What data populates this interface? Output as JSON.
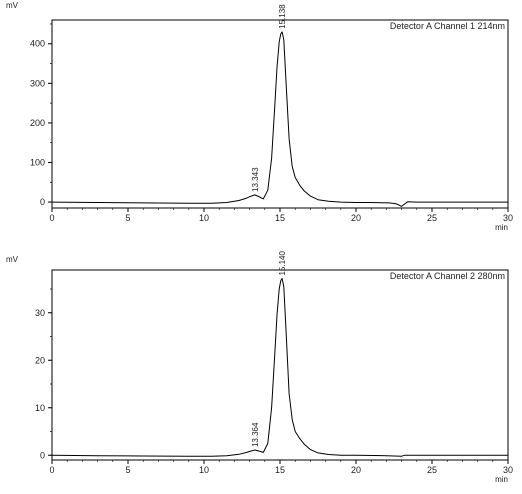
{
  "chart_data": [
    {
      "type": "line",
      "title": "",
      "legend": "Detector A Channel 1 214nm",
      "legend_position": "top-right",
      "ylabel": "mV",
      "xlabel": "min",
      "xlim": [
        0,
        30
      ],
      "ylim": [
        -15,
        460
      ],
      "xticks": [
        0,
        5,
        10,
        15,
        20,
        25,
        30
      ],
      "yticks": [
        0,
        100,
        200,
        300,
        400
      ],
      "grid": false,
      "series": [
        {
          "x": [
            0,
            3,
            6,
            9,
            10.5,
            11.5,
            12.3,
            12.8,
            13.1,
            13.34,
            13.6,
            13.9,
            14.2,
            14.45,
            14.65,
            14.8,
            14.95,
            15.05,
            15.138,
            15.25,
            15.4,
            15.6,
            15.8,
            16.0,
            16.3,
            16.6,
            17.0,
            17.5,
            18.2,
            19.0,
            20,
            21,
            22.2,
            22.6,
            22.8,
            23.0,
            23.2,
            23.4,
            24,
            26,
            28,
            30
          ],
          "y": [
            0,
            -1,
            -2,
            -3,
            -3,
            -1,
            4,
            10,
            15,
            18,
            14,
            8,
            30,
            110,
            240,
            340,
            405,
            425,
            430,
            410,
            300,
            160,
            90,
            62,
            42,
            28,
            15,
            6,
            2,
            0,
            -1,
            -1,
            -2,
            -4,
            -7,
            -11,
            -5,
            1,
            0,
            0,
            0,
            0
          ]
        }
      ],
      "peaks": [
        {
          "label": "13.343",
          "x": 13.343,
          "y": 18
        },
        {
          "label": "15.138",
          "x": 15.138,
          "y": 430
        }
      ]
    },
    {
      "type": "line",
      "title": "",
      "legend": "Detector A Channel 2 280nm",
      "legend_position": "top-right",
      "ylabel": "mV",
      "xlabel": "min",
      "xlim": [
        0,
        30
      ],
      "ylim": [
        -1,
        39
      ],
      "xticks": [
        0,
        5,
        10,
        15,
        20,
        25,
        30
      ],
      "yticks": [
        0,
        10,
        20,
        30
      ],
      "grid": false,
      "series": [
        {
          "x": [
            0,
            3,
            6,
            9,
            10.5,
            11.5,
            12.3,
            12.8,
            13.1,
            13.36,
            13.6,
            13.9,
            14.2,
            14.45,
            14.65,
            14.8,
            14.95,
            15.05,
            15.14,
            15.25,
            15.4,
            15.6,
            15.8,
            16.0,
            16.3,
            16.6,
            17.0,
            17.5,
            18.2,
            19.0,
            20,
            22,
            23,
            23.2,
            24,
            26,
            28,
            30
          ],
          "y": [
            0,
            -0.1,
            -0.15,
            -0.2,
            -0.2,
            -0.1,
            0.2,
            0.6,
            0.9,
            1.1,
            0.9,
            0.6,
            2.5,
            10,
            21,
            29.5,
            35,
            36.8,
            37.2,
            35.5,
            26,
            13,
            7.5,
            5,
            3.5,
            2.3,
            1.2,
            0.5,
            0.15,
            0,
            0,
            -0.1,
            -0.2,
            0,
            0,
            0,
            0,
            0
          ]
        }
      ],
      "peaks": [
        {
          "label": "13.364",
          "x": 13.364,
          "y": 1.1
        },
        {
          "label": "15.140",
          "x": 15.14,
          "y": 37.2
        }
      ]
    }
  ]
}
